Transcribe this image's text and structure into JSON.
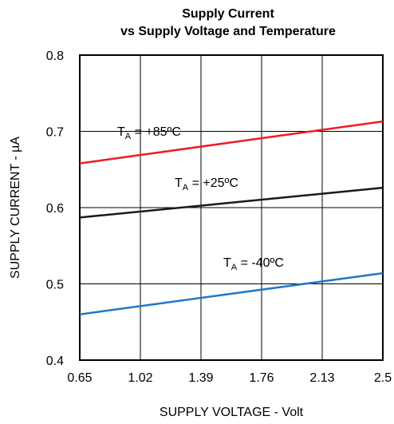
{
  "chart_data": {
    "type": "line",
    "title": "Supply Current",
    "subtitle": "vs Supply Voltage and Temperature",
    "xlabel": "SUPPLY VOLTAGE - Volt",
    "ylabel": "SUPPLY CURRENT - µA",
    "x_ticks": [
      "0.65",
      "1.02",
      "1.39",
      "1.76",
      "2.13",
      "2.5"
    ],
    "y_ticks": [
      "0.4",
      "0.5",
      "0.6",
      "0.7",
      "0.8"
    ],
    "xlim": [
      0.65,
      2.5
    ],
    "ylim": [
      0.4,
      0.8
    ],
    "grid": true,
    "series": [
      {
        "name": "TA = +85ºC",
        "label_main": "T",
        "label_sub": "A",
        "label_rest": " = +85ºC",
        "color": "#ee1c24",
        "x": [
          0.65,
          2.5
        ],
        "y": [
          0.658,
          0.713
        ]
      },
      {
        "name": "TA = +25ºC",
        "label_main": "T",
        "label_sub": "A",
        "label_rest": " = +25ºC",
        "color": "#1a1a1a",
        "x": [
          0.65,
          2.5
        ],
        "y": [
          0.587,
          0.626
        ]
      },
      {
        "name": "TA = -40ºC",
        "label_main": "T",
        "label_sub": "A",
        "label_rest": " = -40ºC",
        "color": "#1f78c8",
        "x": [
          0.65,
          2.5
        ],
        "y": [
          0.46,
          0.514
        ]
      }
    ]
  }
}
